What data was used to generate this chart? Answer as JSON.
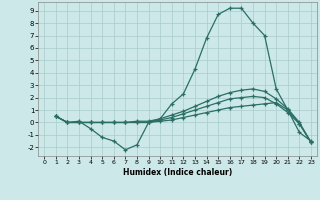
{
  "xlabel": "Humidex (Indice chaleur)",
  "background_color": "#cce8e8",
  "grid_color": "#aacccc",
  "line_color": "#2a6e64",
  "xlim": [
    -0.5,
    23.5
  ],
  "ylim": [
    -2.7,
    9.7
  ],
  "xticks": [
    0,
    1,
    2,
    3,
    4,
    5,
    6,
    7,
    8,
    9,
    10,
    11,
    12,
    13,
    14,
    15,
    16,
    17,
    18,
    19,
    20,
    21,
    22,
    23
  ],
  "yticks": [
    -2,
    -1,
    0,
    1,
    2,
    3,
    4,
    5,
    6,
    7,
    8,
    9
  ],
  "series": [
    {
      "x": [
        1,
        2,
        3,
        4,
        5,
        6,
        7,
        8,
        9,
        10,
        11,
        12,
        13,
        14,
        15,
        16,
        17,
        18,
        19,
        20,
        21,
        22,
        23
      ],
      "y": [
        0.5,
        0.0,
        0.1,
        -0.5,
        -1.2,
        -1.5,
        -2.2,
        -1.8,
        0.0,
        0.3,
        1.5,
        2.3,
        4.3,
        6.8,
        8.7,
        9.2,
        9.2,
        8.0,
        7.0,
        2.7,
        1.0,
        -0.8,
        -1.5
      ]
    },
    {
      "x": [
        1,
        2,
        3,
        4,
        5,
        6,
        7,
        8,
        9,
        10,
        11,
        12,
        13,
        14,
        15,
        16,
        17,
        18,
        19,
        20,
        21,
        22,
        23
      ],
      "y": [
        0.5,
        0.0,
        0.0,
        0.0,
        0.0,
        0.0,
        0.0,
        0.1,
        0.1,
        0.3,
        0.6,
        0.9,
        1.3,
        1.7,
        2.1,
        2.4,
        2.6,
        2.7,
        2.5,
        1.9,
        1.1,
        0.0,
        -1.6
      ]
    },
    {
      "x": [
        1,
        2,
        3,
        4,
        5,
        6,
        7,
        8,
        9,
        10,
        11,
        12,
        13,
        14,
        15,
        16,
        17,
        18,
        19,
        20,
        21,
        22,
        23
      ],
      "y": [
        0.5,
        0.0,
        0.0,
        0.0,
        0.0,
        0.0,
        0.0,
        0.0,
        0.0,
        0.2,
        0.4,
        0.7,
        1.0,
        1.3,
        1.6,
        1.9,
        2.0,
        2.1,
        2.0,
        1.5,
        0.8,
        -0.1,
        -1.6
      ]
    },
    {
      "x": [
        1,
        2,
        3,
        4,
        5,
        6,
        7,
        8,
        9,
        10,
        11,
        12,
        13,
        14,
        15,
        16,
        17,
        18,
        19,
        20,
        21,
        22,
        23
      ],
      "y": [
        0.5,
        0.0,
        0.0,
        0.0,
        0.0,
        0.0,
        0.0,
        0.0,
        0.0,
        0.1,
        0.2,
        0.4,
        0.6,
        0.8,
        1.0,
        1.2,
        1.3,
        1.4,
        1.5,
        1.6,
        1.0,
        -0.1,
        -1.6
      ]
    }
  ]
}
